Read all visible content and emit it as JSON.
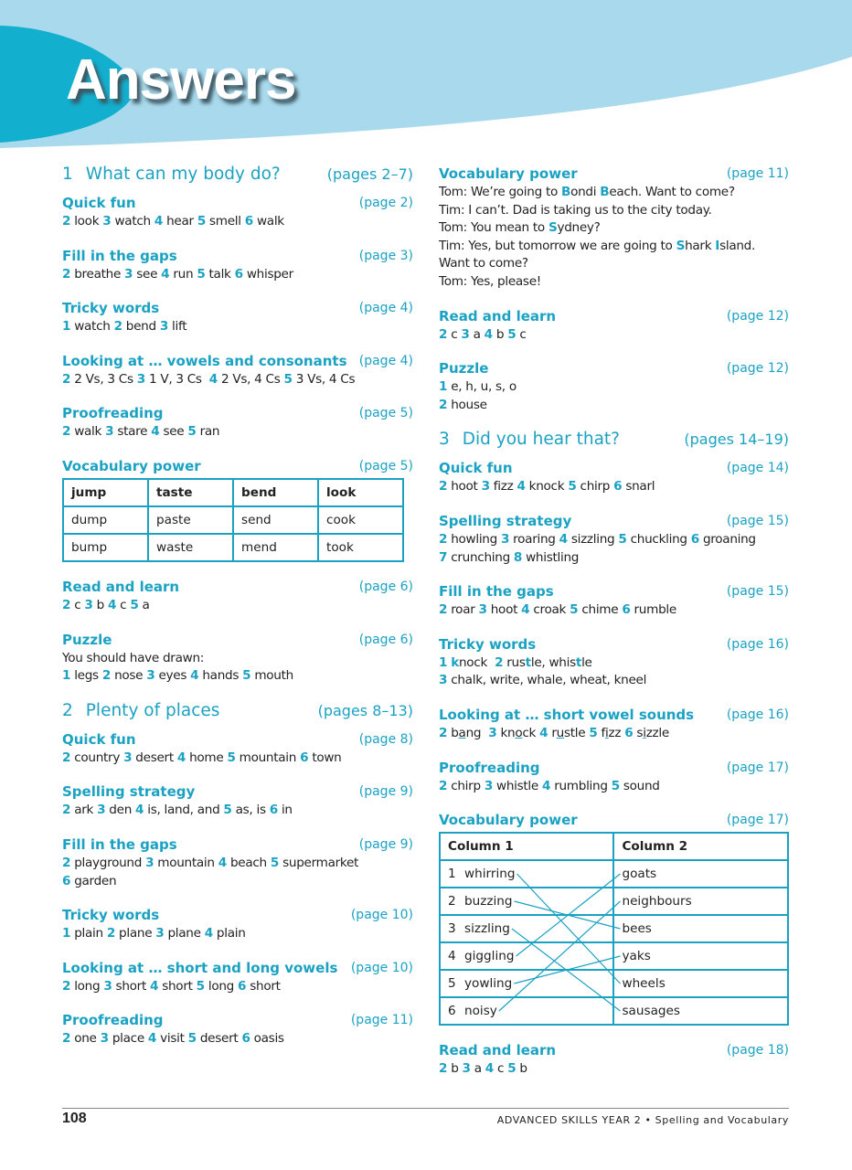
{
  "header": {
    "title": "Answers",
    "colors": {
      "light": "#a9d9ec",
      "dark": "#13afcf",
      "accent": "#1ba2c3"
    }
  },
  "left": [
    {
      "unit": {
        "num": "1",
        "title": "What can my body do?",
        "pages": "(pages 2–7)"
      }
    },
    {
      "title": "Quick fun",
      "page": "(page 2)",
      "lines": [
        [
          {
            "n": "2"
          },
          " look ",
          {
            "n": "3"
          },
          " watch ",
          {
            "n": "4"
          },
          " hear ",
          {
            "n": "5"
          },
          " smell ",
          {
            "n": "6"
          },
          " walk"
        ]
      ]
    },
    {
      "title": "Fill in the gaps",
      "page": "(page 3)",
      "lines": [
        [
          {
            "n": "2"
          },
          " breathe ",
          {
            "n": "3"
          },
          " see ",
          {
            "n": "4"
          },
          " run ",
          {
            "n": "5"
          },
          " talk ",
          {
            "n": "6"
          },
          " whisper"
        ]
      ]
    },
    {
      "title": "Tricky words",
      "page": "(page 4)",
      "lines": [
        [
          {
            "n": "1"
          },
          " watch ",
          {
            "n": "2"
          },
          " bend ",
          {
            "n": "3"
          },
          " lift"
        ]
      ]
    },
    {
      "title": "Looking at … vowels and consonants",
      "page": "(page 4)",
      "lines": [
        [
          {
            "n": "2"
          },
          " 2 Vs, 3 Cs ",
          {
            "n": "3"
          },
          " 1 V, 3 Cs  ",
          {
            "n": "4"
          },
          " 2 Vs, 4 Cs ",
          {
            "n": "5"
          },
          " 3 Vs, 4 Cs"
        ]
      ]
    },
    {
      "title": "Proofreading",
      "page": "(page 5)",
      "lines": [
        [
          {
            "n": "2"
          },
          " walk ",
          {
            "n": "3"
          },
          " stare ",
          {
            "n": "4"
          },
          " see ",
          {
            "n": "5"
          },
          " ran"
        ]
      ]
    },
    {
      "title": "Vocabulary power",
      "page": "(page 5)",
      "table": [
        [
          "jump",
          "taste",
          "bend",
          "look"
        ],
        [
          "dump",
          "paste",
          "send",
          "cook"
        ],
        [
          "bump",
          "waste",
          "mend",
          "took"
        ]
      ]
    },
    {
      "title": "Read and learn",
      "page": "(page 6)",
      "lines": [
        [
          {
            "n": "2"
          },
          " c ",
          {
            "n": "3"
          },
          " b ",
          {
            "n": "4"
          },
          " c ",
          {
            "n": "5"
          },
          " a"
        ]
      ]
    },
    {
      "title": "Puzzle",
      "page": "(page 6)",
      "lines": [
        [
          "You should have drawn:"
        ],
        [
          {
            "n": "1"
          },
          " legs ",
          {
            "n": "2"
          },
          " nose ",
          {
            "n": "3"
          },
          " eyes ",
          {
            "n": "4"
          },
          " hands ",
          {
            "n": "5"
          },
          " mouth"
        ]
      ]
    },
    {
      "unit": {
        "num": "2",
        "title": "Plenty of places",
        "pages": "(pages 8–13)"
      }
    },
    {
      "title": "Quick fun",
      "page": "(page 8)",
      "lines": [
        [
          {
            "n": "2"
          },
          " country ",
          {
            "n": "3"
          },
          " desert ",
          {
            "n": "4"
          },
          " home ",
          {
            "n": "5"
          },
          " mountain ",
          {
            "n": "6"
          },
          " town"
        ]
      ]
    },
    {
      "title": "Spelling strategy",
      "page": "(page 9)",
      "lines": [
        [
          {
            "n": "2"
          },
          " ark ",
          {
            "n": "3"
          },
          " den ",
          {
            "n": "4"
          },
          " is, land, and ",
          {
            "n": "5"
          },
          " as, is ",
          {
            "n": "6"
          },
          " in"
        ]
      ]
    },
    {
      "title": "Fill in the gaps",
      "page": "(page 9)",
      "lines": [
        [
          {
            "n": "2"
          },
          " playground ",
          {
            "n": "3"
          },
          " mountain ",
          {
            "n": "4"
          },
          " beach ",
          {
            "n": "5"
          },
          " supermarket"
        ],
        [
          {
            "n": "6"
          },
          " garden"
        ]
      ]
    },
    {
      "title": "Tricky words",
      "page": "(page 10)",
      "lines": [
        [
          {
            "n": "1"
          },
          " plain ",
          {
            "n": "2"
          },
          " plane ",
          {
            "n": "3"
          },
          " plane ",
          {
            "n": "4"
          },
          " plain"
        ]
      ]
    },
    {
      "title": "Looking at … short and long vowels",
      "page": "(page 10)",
      "lines": [
        [
          {
            "n": "2"
          },
          " long ",
          {
            "n": "3"
          },
          " short ",
          {
            "n": "4"
          },
          " short ",
          {
            "n": "5"
          },
          " long ",
          {
            "n": "6"
          },
          " short"
        ]
      ]
    },
    {
      "title": "Proofreading",
      "page": "(page 11)",
      "lines": [
        [
          {
            "n": "2"
          },
          " one ",
          {
            "n": "3"
          },
          " place ",
          {
            "n": "4"
          },
          " visit ",
          {
            "n": "5"
          },
          " desert ",
          {
            "n": "6"
          },
          " oasis"
        ]
      ]
    }
  ],
  "right": [
    {
      "title": "Vocabulary power",
      "page": "(page 11)",
      "lines": [
        [
          "Tom: We’re going to ",
          {
            "h": "B"
          },
          "ondi ",
          {
            "h": "B"
          },
          "each. Want to come?"
        ],
        [
          "Tim: I can’t. Dad is taking us to the city today."
        ],
        [
          "Tom: You mean to ",
          {
            "h": "S"
          },
          "ydney?"
        ],
        [
          "Tim: Yes, but tomorrow we are going to ",
          {
            "h": "S"
          },
          "hark ",
          {
            "h": "I"
          },
          "sland. Want to come?"
        ],
        [
          "Tom: Yes, please!"
        ]
      ]
    },
    {
      "title": "Read and learn",
      "page": "(page 12)",
      "lines": [
        [
          {
            "n": "2"
          },
          " c ",
          {
            "n": "3"
          },
          " a ",
          {
            "n": "4"
          },
          " b ",
          {
            "n": "5"
          },
          " c"
        ]
      ]
    },
    {
      "title": "Puzzle",
      "page": "(page 12)",
      "lines": [
        [
          {
            "n": "1"
          },
          " e, h, u, s, o"
        ],
        [
          {
            "n": "2"
          },
          " house"
        ]
      ]
    },
    {
      "unit": {
        "num": "3",
        "title": "Did you hear that?",
        "pages": "(pages 14–19)"
      }
    },
    {
      "title": "Quick fun",
      "page": "(page 14)",
      "lines": [
        [
          {
            "n": "2"
          },
          " hoot ",
          {
            "n": "3"
          },
          " fizz ",
          {
            "n": "4"
          },
          " knock ",
          {
            "n": "5"
          },
          " chirp ",
          {
            "n": "6"
          },
          " snarl"
        ]
      ]
    },
    {
      "title": "Spelling strategy",
      "page": "(page 15)",
      "lines": [
        [
          {
            "n": "2"
          },
          " howling ",
          {
            "n": "3"
          },
          " roaring ",
          {
            "n": "4"
          },
          " sizzling ",
          {
            "n": "5"
          },
          " chuckling ",
          {
            "n": "6"
          },
          " groaning"
        ],
        [
          {
            "n": "7"
          },
          " crunching ",
          {
            "n": "8"
          },
          " whistling"
        ]
      ]
    },
    {
      "title": "Fill in the gaps",
      "page": "(page 15)",
      "lines": [
        [
          {
            "n": "2"
          },
          " roar ",
          {
            "n": "3"
          },
          " hoot ",
          {
            "n": "4"
          },
          " croak ",
          {
            "n": "5"
          },
          " chime ",
          {
            "n": "6"
          },
          " rumble"
        ]
      ]
    },
    {
      "title": "Tricky words",
      "page": "(page 16)",
      "lines": [
        [
          {
            "n": "1"
          },
          " ",
          {
            "h": "k"
          },
          "nock  ",
          {
            "n": "2"
          },
          " rus",
          {
            "h": "t"
          },
          "le, whis",
          {
            "h": "t"
          },
          "le"
        ],
        [
          {
            "n": "3"
          },
          " chalk, write, whale, wheat, kneel"
        ]
      ]
    },
    {
      "title": "Looking at … short vowel sounds",
      "page": "(page 16)",
      "lines": [
        [
          {
            "n": "2"
          },
          " b",
          {
            "u": "a"
          },
          "ng  ",
          {
            "n": "3"
          },
          " kn",
          {
            "u": "o"
          },
          "ck ",
          {
            "n": "4"
          },
          " r",
          {
            "u": "u"
          },
          "stle ",
          {
            "n": "5"
          },
          " f",
          {
            "u": "i"
          },
          "zz ",
          {
            "n": "6"
          },
          " s",
          {
            "u": "i"
          },
          "zzle"
        ]
      ]
    },
    {
      "title": "Proofreading",
      "page": "(page 17)",
      "lines": [
        [
          {
            "n": "2"
          },
          " chirp ",
          {
            "n": "3"
          },
          " whistle ",
          {
            "n": "4"
          },
          " rumbling ",
          {
            "n": "5"
          },
          " sound"
        ]
      ]
    },
    {
      "title": "Vocabulary power",
      "page": "(page 17)",
      "match": {
        "headers": [
          "Column 1",
          "Column 2"
        ],
        "left": [
          [
            "1",
            "whirring"
          ],
          [
            "2",
            "buzzing"
          ],
          [
            "3",
            "sizzling"
          ],
          [
            "4",
            "giggling"
          ],
          [
            "5",
            "yowling"
          ],
          [
            "6",
            "noisy"
          ]
        ],
        "right": [
          "goats",
          "neighbours",
          "bees",
          "yaks",
          "wheels",
          "sausages"
        ],
        "pairs": [
          [
            "whirring",
            "wheels"
          ],
          [
            "buzzing",
            "bees"
          ],
          [
            "sizzling",
            "sausages"
          ],
          [
            "giggling",
            "goats"
          ],
          [
            "yowling",
            "yaks"
          ],
          [
            "noisy",
            "neighbours"
          ]
        ]
      }
    },
    {
      "title": "Read and learn",
      "page": "(page 18)",
      "lines": [
        [
          {
            "n": "2"
          },
          " b ",
          {
            "n": "3"
          },
          " a ",
          {
            "n": "4"
          },
          " c ",
          {
            "n": "5"
          },
          " b"
        ]
      ]
    }
  ],
  "footer": {
    "page_number": "108",
    "book": "ADVANCED SKILLS YEAR 2 • Spelling and Vocabulary"
  }
}
